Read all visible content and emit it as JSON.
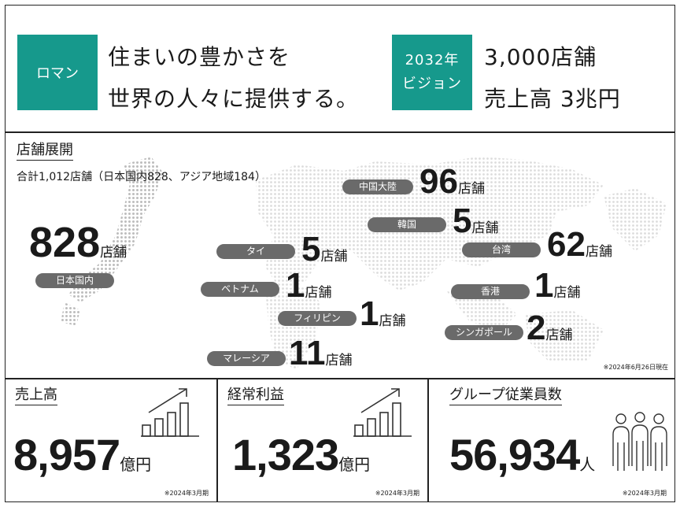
{
  "header": {
    "mission_badge": "ロマン",
    "mission_line1": "住まいの豊かさを",
    "mission_line2": "世界の人々に提供する。",
    "vision_badge_line1": "2032年",
    "vision_badge_line2": "ビジョン",
    "vision_line1": "3,000店舗",
    "vision_line2": "売上高 3兆円"
  },
  "stores": {
    "heading": "店舗展開",
    "total": "合計1,012店舗（日本国内828、アジア地域184）",
    "unit": "店舗",
    "as_of": "※2024年6月26日現在",
    "japan": {
      "label": "日本国内",
      "count": "828"
    },
    "regions": [
      {
        "label": "タイ",
        "count": "5"
      },
      {
        "label": "ベトナム",
        "count": "1"
      },
      {
        "label": "フィリピン",
        "count": "1"
      },
      {
        "label": "マレーシア",
        "count": "11"
      },
      {
        "label": "中国大陸",
        "count": "96"
      },
      {
        "label": "韓国",
        "count": "5"
      },
      {
        "label": "台湾",
        "count": "62"
      },
      {
        "label": "香港",
        "count": "1"
      },
      {
        "label": "シンガポール",
        "count": "2"
      }
    ]
  },
  "kpis": {
    "sales": {
      "title": "売上高",
      "value": "8,957",
      "unit": "億円",
      "note": "※2024年3月期",
      "icon": "bar-chart-rising-icon"
    },
    "profit": {
      "title": "経常利益",
      "value": "1,323",
      "unit": "億円",
      "note": "※2024年3月期",
      "icon": "bar-chart-rising-icon"
    },
    "employees": {
      "title": "グループ従業員数",
      "value": "56,934",
      "unit": "人",
      "note": "※2024年3月期",
      "icon": "people-group-icon"
    }
  },
  "colors": {
    "accent": "#16998c",
    "pill": "#6a6a6a",
    "map_dots": "#dcdcdc",
    "japan_dots": "#bdbdbd"
  }
}
